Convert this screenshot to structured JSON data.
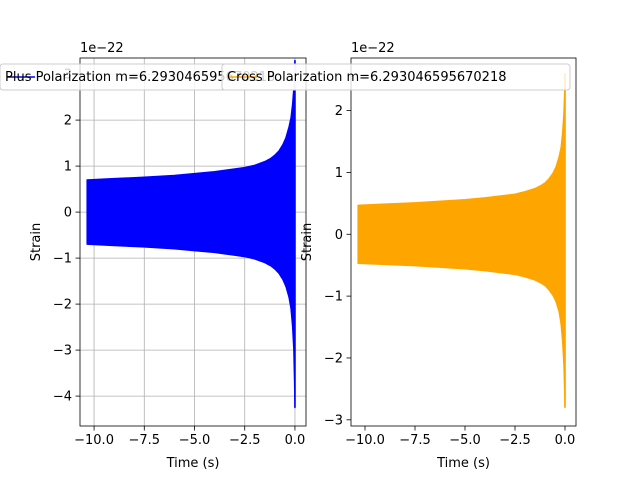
{
  "chart_data": [
    {
      "type": "line",
      "xlabel": "Time (s)",
      "ylabel": "Strain",
      "offset_text": "1e−22",
      "xlim": [
        -10.7,
        0.55
      ],
      "ylim": [
        -4.65,
        3.35
      ],
      "x_ticks": [
        -10.0,
        -7.5,
        -5.0,
        -2.5,
        0.0
      ],
      "x_tick_labels": [
        "−10.0",
        "−7.5",
        "−5.0",
        "−2.5",
        "0.0"
      ],
      "y_ticks": [
        -4,
        -3,
        -2,
        -1,
        0,
        1,
        2,
        3
      ],
      "y_tick_labels": [
        "−4",
        "−3",
        "−2",
        "−1",
        "0",
        "1",
        "2",
        "3"
      ],
      "grid": true,
      "legend": "upper-left",
      "series": [
        {
          "name": "Plus Polarization m=6.293046595670218",
          "color": "#0000ff",
          "envelope_x": [
            -10.35,
            -9.0,
            -7.5,
            -6.0,
            -5.0,
            -4.0,
            -3.0,
            -2.5,
            -2.0,
            -1.5,
            -1.2,
            -1.0,
            -0.8,
            -0.6,
            -0.45,
            -0.3,
            -0.2,
            -0.12,
            -0.06,
            -0.02,
            0.0
          ],
          "upper": [
            0.7,
            0.73,
            0.76,
            0.8,
            0.84,
            0.88,
            0.94,
            0.97,
            1.02,
            1.1,
            1.17,
            1.24,
            1.33,
            1.47,
            1.62,
            1.85,
            2.05,
            2.35,
            2.7,
            3.1,
            3.3
          ],
          "lower": [
            -0.7,
            -0.73,
            -0.76,
            -0.8,
            -0.84,
            -0.88,
            -0.94,
            -0.97,
            -1.02,
            -1.1,
            -1.17,
            -1.24,
            -1.33,
            -1.47,
            -1.62,
            -1.85,
            -2.1,
            -2.5,
            -3.0,
            -3.8,
            -4.25
          ]
        }
      ]
    },
    {
      "type": "line",
      "xlabel": "Time (s)",
      "ylabel": "Strain",
      "offset_text": "1e−22",
      "xlim": [
        -10.7,
        0.55
      ],
      "ylim": [
        -3.1,
        2.85
      ],
      "x_ticks": [
        -10.0,
        -7.5,
        -5.0,
        -2.5,
        0.0
      ],
      "x_tick_labels": [
        "−10.0",
        "−7.5",
        "−5.0",
        "−2.5",
        "0.0"
      ],
      "y_ticks": [
        -3,
        -2,
        -1,
        0,
        1,
        2
      ],
      "y_tick_labels": [
        "−3",
        "−2",
        "−1",
        "0",
        "1",
        "2"
      ],
      "grid": false,
      "legend": "upper-left",
      "series": [
        {
          "name": "Cross Polarization m=6.293046595670218",
          "color": "#ffa500",
          "envelope_x": [
            -10.35,
            -9.0,
            -7.5,
            -6.0,
            -5.0,
            -4.0,
            -3.0,
            -2.5,
            -2.0,
            -1.5,
            -1.2,
            -1.0,
            -0.8,
            -0.6,
            -0.45,
            -0.3,
            -0.2,
            -0.12,
            -0.06,
            -0.02,
            0.0
          ],
          "upper": [
            0.47,
            0.49,
            0.51,
            0.54,
            0.56,
            0.59,
            0.63,
            0.65,
            0.69,
            0.74,
            0.79,
            0.83,
            0.9,
            0.99,
            1.09,
            1.25,
            1.4,
            1.65,
            1.95,
            2.3,
            2.6
          ],
          "lower": [
            -0.47,
            -0.49,
            -0.51,
            -0.54,
            -0.56,
            -0.59,
            -0.63,
            -0.65,
            -0.69,
            -0.74,
            -0.79,
            -0.83,
            -0.9,
            -0.99,
            -1.09,
            -1.25,
            -1.45,
            -1.75,
            -2.1,
            -2.55,
            -2.8
          ]
        }
      ]
    }
  ]
}
